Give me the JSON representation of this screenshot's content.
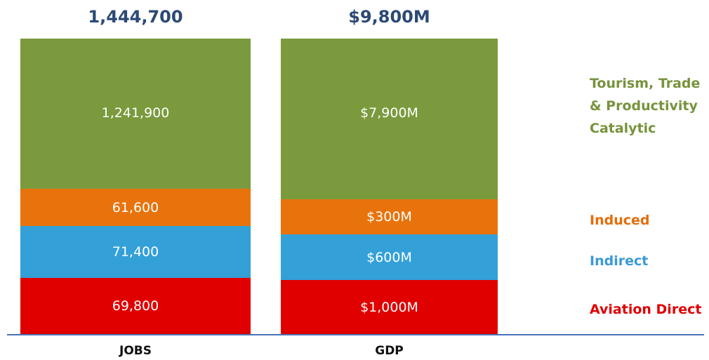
{
  "columns": [
    {
      "label": "JOBS",
      "total": "1,444,700",
      "segments": [
        "69,800",
        "71,400",
        "61,600",
        "1,241,900"
      ]
    },
    {
      "label": "GDP",
      "total": "$9,800M",
      "segments": [
        "$1,000M",
        "$600M",
        "$300M",
        "$7,900M"
      ]
    }
  ],
  "legend": [
    {
      "lines": [
        "Aviation Direct"
      ]
    },
    {
      "lines": [
        "Indirect"
      ]
    },
    {
      "lines": [
        "Induced"
      ]
    },
    {
      "lines": [
        "Tourism, Trade",
        "& Productivity",
        "Catalytic"
      ]
    }
  ]
}
